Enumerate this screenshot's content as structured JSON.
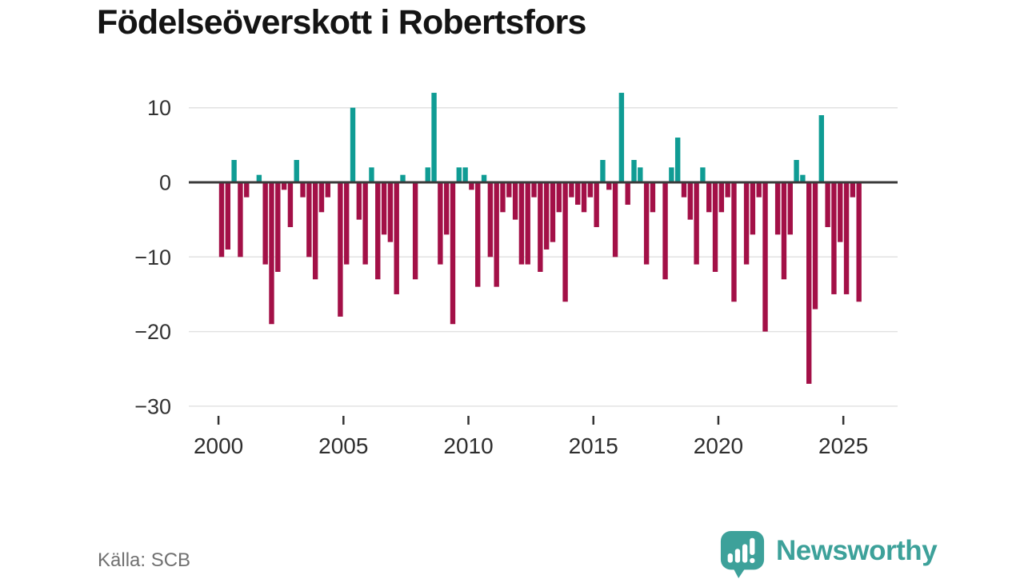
{
  "title": "Födelseöverskott i Robertsfors",
  "source": "Källa: SCB",
  "logo": {
    "text": "Newsworthy"
  },
  "colors": {
    "positive_bar": "#0f9c94",
    "negative_bar": "#a31047",
    "zero_axis": "#3a3a3a",
    "gridline": "#e2e2e2",
    "tick_text": "#333333",
    "title_text": "#141414",
    "source_text": "#707070",
    "logo_teal": "#3da19a"
  },
  "chart_data": {
    "type": "bar",
    "title": "Födelseöverskott i Robertsfors",
    "xlabel": "",
    "ylabel": "",
    "frequency": "quarterly",
    "ylim": [
      -30,
      13
    ],
    "grid": true,
    "yticks": {
      "values": [
        10,
        0,
        -10,
        -20,
        -30
      ],
      "labels": [
        "10",
        "0",
        "−10",
        "−20",
        "−30"
      ]
    },
    "xticks": {
      "values": [
        2000,
        2005,
        2010,
        2015,
        2020,
        2025
      ],
      "labels": [
        "2000",
        "2005",
        "2010",
        "2015",
        "2020",
        "2025"
      ]
    },
    "categories": [
      "2000 Q1",
      "2000 Q2",
      "2000 Q3",
      "2000 Q4",
      "2001 Q1",
      "2001 Q2",
      "2001 Q3",
      "2001 Q4",
      "2002 Q1",
      "2002 Q2",
      "2002 Q3",
      "2002 Q4",
      "2003 Q1",
      "2003 Q2",
      "2003 Q3",
      "2003 Q4",
      "2004 Q1",
      "2004 Q2",
      "2004 Q3",
      "2004 Q4",
      "2005 Q1",
      "2005 Q2",
      "2005 Q3",
      "2005 Q4",
      "2006 Q1",
      "2006 Q2",
      "2006 Q3",
      "2006 Q4",
      "2007 Q1",
      "2007 Q2",
      "2007 Q3",
      "2007 Q4",
      "2008 Q1",
      "2008 Q2",
      "2008 Q3",
      "2008 Q4",
      "2009 Q1",
      "2009 Q2",
      "2009 Q3",
      "2009 Q4",
      "2010 Q1",
      "2010 Q2",
      "2010 Q3",
      "2010 Q4",
      "2011 Q1",
      "2011 Q2",
      "2011 Q3",
      "2011 Q4",
      "2012 Q1",
      "2012 Q2",
      "2012 Q3",
      "2012 Q4",
      "2013 Q1",
      "2013 Q2",
      "2013 Q3",
      "2013 Q4",
      "2014 Q1",
      "2014 Q2",
      "2014 Q3",
      "2014 Q4",
      "2015 Q1",
      "2015 Q2",
      "2015 Q3",
      "2015 Q4",
      "2016 Q1",
      "2016 Q2",
      "2016 Q3",
      "2016 Q4",
      "2017 Q1",
      "2017 Q2",
      "2017 Q3",
      "2017 Q4",
      "2018 Q1",
      "2018 Q2",
      "2018 Q3",
      "2018 Q4",
      "2019 Q1",
      "2019 Q2",
      "2019 Q3",
      "2019 Q4",
      "2020 Q1",
      "2020 Q2",
      "2020 Q3",
      "2020 Q4",
      "2021 Q1",
      "2021 Q2",
      "2021 Q3",
      "2021 Q4",
      "2022 Q1",
      "2022 Q2",
      "2022 Q3",
      "2022 Q4",
      "2023 Q1",
      "2023 Q2",
      "2023 Q3",
      "2023 Q4",
      "2024 Q1",
      "2024 Q2",
      "2024 Q3",
      "2024 Q4",
      "2025 Q1",
      "2025 Q2",
      "2025 Q3"
    ],
    "values": [
      -10,
      -9,
      3,
      -10,
      -2,
      0,
      1,
      -11,
      -19,
      -12,
      -1,
      -6,
      3,
      -2,
      -10,
      -13,
      -4,
      -2,
      0,
      -18,
      -11,
      10,
      -5,
      -11,
      2,
      -13,
      -7,
      -8,
      -15,
      1,
      0,
      -13,
      0,
      2,
      12,
      -11,
      -7,
      -19,
      2,
      2,
      -1,
      -14,
      1,
      -10,
      -14,
      -4,
      -2,
      -5,
      -11,
      -11,
      -2,
      -12,
      -9,
      -8,
      -4,
      -16,
      -2,
      -3,
      -4,
      -2,
      -6,
      3,
      -1,
      -10,
      12,
      -3,
      3,
      2,
      -11,
      -4,
      0,
      -13,
      2,
      6,
      -2,
      -5,
      -11,
      2,
      -4,
      -12,
      -4,
      -2,
      -16,
      0,
      -11,
      -7,
      -2,
      -20,
      0,
      -7,
      -13,
      -7,
      3,
      1,
      -27,
      -17,
      9,
      -6,
      -15,
      -8,
      -15,
      -2,
      -16
    ],
    "legend": false,
    "positive_color": "#0f9c94",
    "negative_color": "#a31047"
  }
}
